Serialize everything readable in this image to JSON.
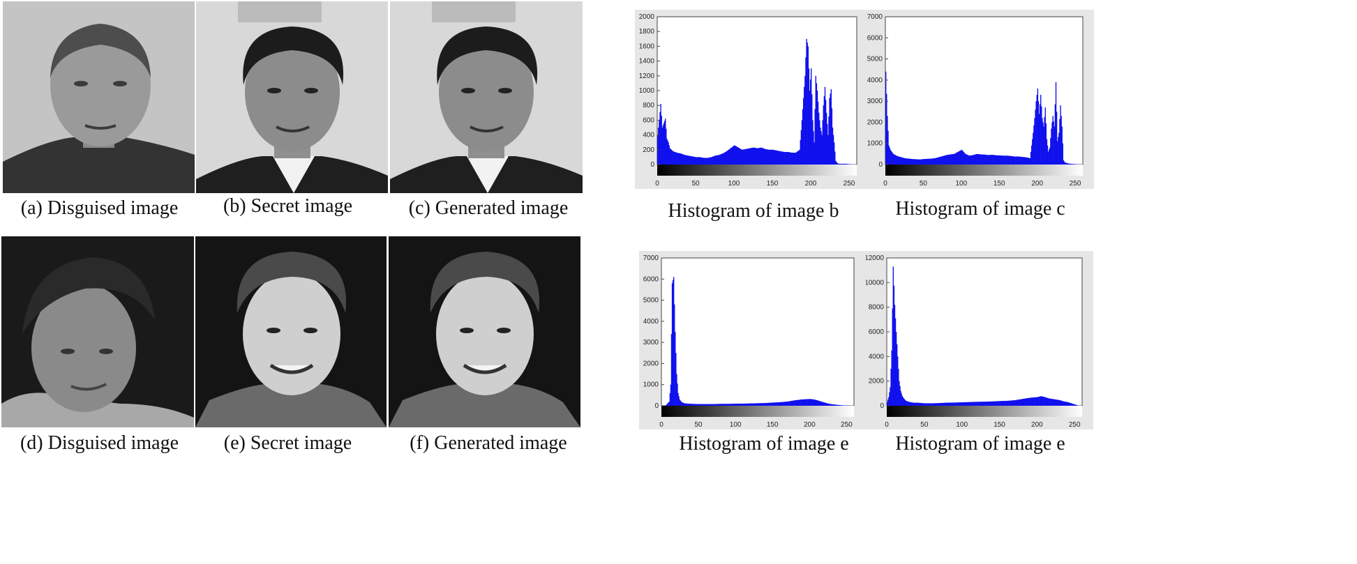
{
  "captions": {
    "a": "(a) Disguised image",
    "b": "(b) Secret image",
    "c": "(c) Generated image",
    "d": "(d) Disguised image",
    "e": "(e) Secret image",
    "f": "(f) Generated image"
  },
  "histogram_captions": {
    "top_left": "Histogram of image b",
    "top_right": "Histogram of image c",
    "bottom_left": "Histogram of image e",
    "bottom_right": "Histogram of image e"
  },
  "colors": {
    "bar": "#1010ee",
    "panel_bg": "#e6e6e6",
    "plot_bg": "#ffffff"
  },
  "chart_data": [
    {
      "type": "bar",
      "title": "",
      "xlabel": "",
      "ylabel": "",
      "xlim": [
        0,
        260
      ],
      "ylim": [
        0,
        2000
      ],
      "xticks": [
        0,
        50,
        100,
        150,
        200,
        250
      ],
      "yticks": [
        0,
        200,
        400,
        600,
        800,
        1000,
        1200,
        1400,
        1600,
        1800,
        2000
      ],
      "series": [
        {
          "x": [
            0,
            2,
            4,
            6,
            8,
            10,
            12,
            14,
            16,
            18,
            20,
            25,
            30,
            35,
            40,
            45,
            50,
            55,
            60,
            65,
            70,
            75,
            80,
            85,
            90,
            95,
            100,
            105,
            110,
            115,
            120,
            125,
            130,
            135,
            140,
            145,
            150,
            155,
            160,
            165,
            170,
            175,
            180,
            185,
            188,
            190,
            192,
            194,
            196,
            198,
            200,
            202,
            204,
            206,
            208,
            210,
            212,
            214,
            216,
            218,
            220,
            222,
            224,
            226,
            228,
            230,
            232,
            234,
            236,
            240,
            245,
            250,
            255
          ],
          "values": [
            400,
            600,
            820,
            500,
            560,
            620,
            350,
            300,
            220,
            200,
            180,
            160,
            150,
            130,
            120,
            110,
            100,
            100,
            90,
            90,
            100,
            120,
            130,
            150,
            180,
            220,
            260,
            230,
            200,
            210,
            220,
            230,
            220,
            230,
            210,
            200,
            200,
            190,
            180,
            170,
            170,
            160,
            160,
            200,
            600,
            900,
            1200,
            1700,
            1600,
            1000,
            1300,
            600,
            300,
            1200,
            1000,
            700,
            500,
            400,
            800,
            1050,
            700,
            400,
            900,
            1020,
            500,
            300,
            50,
            20,
            10,
            10,
            10,
            5,
            0
          ]
        }
      ]
    },
    {
      "type": "bar",
      "title": "",
      "xlabel": "",
      "ylabel": "",
      "xlim": [
        0,
        260
      ],
      "ylim": [
        0,
        7000
      ],
      "xticks": [
        0,
        50,
        100,
        150,
        200,
        250
      ],
      "yticks": [
        0,
        1000,
        2000,
        3000,
        4000,
        5000,
        6000,
        7000
      ],
      "series": [
        {
          "x": [
            0,
            2,
            4,
            6,
            8,
            10,
            15,
            20,
            25,
            30,
            35,
            40,
            45,
            50,
            55,
            60,
            65,
            70,
            75,
            80,
            85,
            90,
            95,
            100,
            105,
            110,
            115,
            120,
            125,
            130,
            135,
            140,
            145,
            150,
            155,
            160,
            165,
            170,
            175,
            180,
            185,
            190,
            194,
            196,
            198,
            200,
            202,
            204,
            206,
            208,
            210,
            212,
            214,
            216,
            218,
            220,
            222,
            224,
            226,
            228,
            230,
            232,
            234,
            236,
            240,
            245,
            250,
            255
          ],
          "values": [
            4400,
            2300,
            900,
            700,
            600,
            500,
            400,
            350,
            300,
            280,
            260,
            250,
            240,
            260,
            270,
            280,
            300,
            350,
            400,
            450,
            480,
            500,
            600,
            700,
            500,
            420,
            450,
            500,
            480,
            470,
            450,
            460,
            440,
            430,
            420,
            420,
            400,
            380,
            380,
            360,
            340,
            300,
            1500,
            2200,
            3000,
            3600,
            2400,
            3300,
            2200,
            1800,
            2700,
            1200,
            600,
            800,
            1700,
            2300,
            1800,
            3900,
            1100,
            1500,
            2800,
            1800,
            200,
            100,
            50,
            30,
            20,
            0
          ]
        }
      ]
    },
    {
      "type": "bar",
      "title": "",
      "xlabel": "",
      "ylabel": "",
      "xlim": [
        0,
        260
      ],
      "ylim": [
        0,
        7000
      ],
      "xticks": [
        0,
        50,
        100,
        150,
        200,
        250
      ],
      "yticks": [
        0,
        1000,
        2000,
        3000,
        4000,
        5000,
        6000,
        7000
      ],
      "series": [
        {
          "x": [
            0,
            5,
            10,
            12,
            14,
            16,
            18,
            20,
            22,
            24,
            26,
            28,
            30,
            35,
            40,
            50,
            60,
            70,
            80,
            90,
            100,
            110,
            120,
            130,
            140,
            150,
            160,
            170,
            180,
            190,
            200,
            205,
            210,
            215,
            220,
            225,
            230,
            240,
            250,
            255
          ],
          "values": [
            0,
            0,
            200,
            1000,
            5800,
            6100,
            3500,
            1500,
            600,
            300,
            200,
            150,
            120,
            100,
            90,
            80,
            80,
            80,
            90,
            90,
            100,
            100,
            110,
            120,
            130,
            150,
            170,
            200,
            260,
            300,
            320,
            300,
            260,
            200,
            150,
            100,
            70,
            30,
            10,
            0
          ]
        }
      ]
    },
    {
      "type": "bar",
      "title": "",
      "xlabel": "",
      "ylabel": "",
      "xlim": [
        0,
        260
      ],
      "ylim": [
        0,
        12000
      ],
      "xticks": [
        0,
        50,
        100,
        150,
        200,
        250
      ],
      "yticks": [
        0,
        2000,
        4000,
        6000,
        8000,
        10000,
        12000
      ],
      "series": [
        {
          "x": [
            0,
            2,
            4,
            6,
            8,
            10,
            12,
            14,
            16,
            18,
            20,
            22,
            25,
            30,
            35,
            40,
            50,
            60,
            70,
            80,
            90,
            100,
            110,
            120,
            130,
            140,
            150,
            160,
            170,
            180,
            190,
            200,
            205,
            210,
            215,
            220,
            225,
            230,
            235,
            240,
            245,
            250,
            255
          ],
          "values": [
            300,
            700,
            1500,
            4500,
            11300,
            8200,
            6000,
            4000,
            2000,
            1200,
            800,
            600,
            400,
            300,
            250,
            250,
            200,
            200,
            220,
            250,
            260,
            280,
            300,
            320,
            330,
            350,
            380,
            400,
            450,
            550,
            650,
            700,
            780,
            700,
            600,
            550,
            500,
            450,
            350,
            300,
            200,
            100,
            0
          ]
        }
      ]
    }
  ]
}
